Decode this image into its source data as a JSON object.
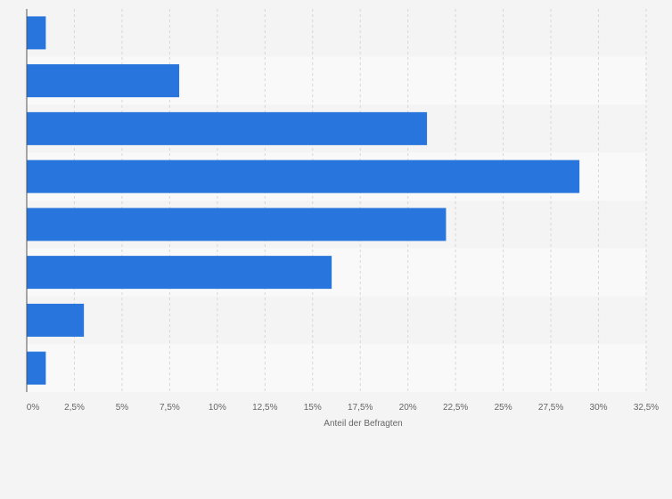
{
  "chart_data": {
    "type": "bar",
    "orientation": "horizontal",
    "title": "",
    "xlabel": "Anteil der Befragten",
    "ylabel": "",
    "xlim": [
      0,
      32.5
    ],
    "x_ticks": [
      0,
      2.5,
      5,
      7.5,
      10,
      12.5,
      15,
      17.5,
      20,
      22.5,
      25,
      27.5,
      30,
      32.5
    ],
    "x_tick_labels": [
      "0%",
      "2,5%",
      "5%",
      "7,5%",
      "10%",
      "12,5%",
      "15%",
      "17,5%",
      "20%",
      "22,5%",
      "25%",
      "27,5%",
      "30%",
      "32,5%"
    ],
    "categories": [
      "",
      "",
      "",
      "",
      "",
      "",
      "",
      ""
    ],
    "values": [
      1,
      8,
      21,
      29,
      22,
      16,
      3,
      1
    ],
    "grid": true,
    "bar_color": "#2876dd",
    "band_colors": [
      "#f4f4f4",
      "#f9f9f9"
    ],
    "grid_color": "#d7d7d7",
    "axis_color": "#555555"
  }
}
